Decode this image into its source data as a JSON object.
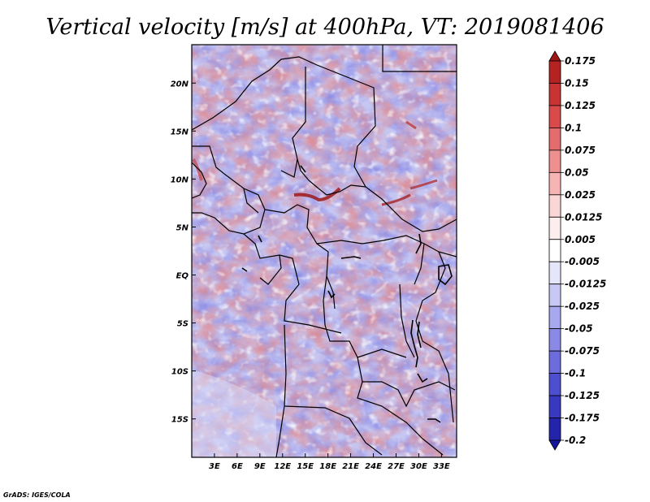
{
  "chart_data": {
    "type": "heatmap",
    "title": "Vertical velocity [m/s] at 400hPa, VT: 2019081406",
    "xlabel": "",
    "ylabel": "",
    "x_ticks": [
      "3E",
      "6E",
      "9E",
      "12E",
      "15E",
      "18E",
      "21E",
      "24E",
      "27E",
      "30E",
      "33E"
    ],
    "y_ticks": [
      "20N",
      "15N",
      "10N",
      "5N",
      "EQ",
      "5S",
      "10S",
      "15S"
    ],
    "xlim": [
      "0E",
      "35E"
    ],
    "ylim": [
      "19S",
      "24N"
    ],
    "colorbar": {
      "levels": [
        "0.175",
        "0.15",
        "0.125",
        "0.1",
        "0.075",
        "0.05",
        "0.025",
        "0.0125",
        "0.005",
        "-0.005",
        "-0.0125",
        "-0.025",
        "-0.05",
        "-0.075",
        "-0.1",
        "-0.125",
        "-0.175",
        "-0.2"
      ],
      "colors": [
        "#a01616",
        "#b52222",
        "#c83434",
        "#d94a4a",
        "#e56c6c",
        "#ef9090",
        "#f6b4b4",
        "#fbd6d6",
        "#fdeeee",
        "#ffffff",
        "#e6e6fa",
        "#c8c8f4",
        "#a8a8ee",
        "#8a8ae6",
        "#6c6cdc",
        "#4e4ed0",
        "#3838c0",
        "#2424aa",
        "#16169a"
      ]
    },
    "features": "field of positive (red) and negative (blue) vertical velocity over central Africa, with strongest ascent near 7-9N between 15E and 28E"
  },
  "credit": "GrADS: IGES/COLA"
}
